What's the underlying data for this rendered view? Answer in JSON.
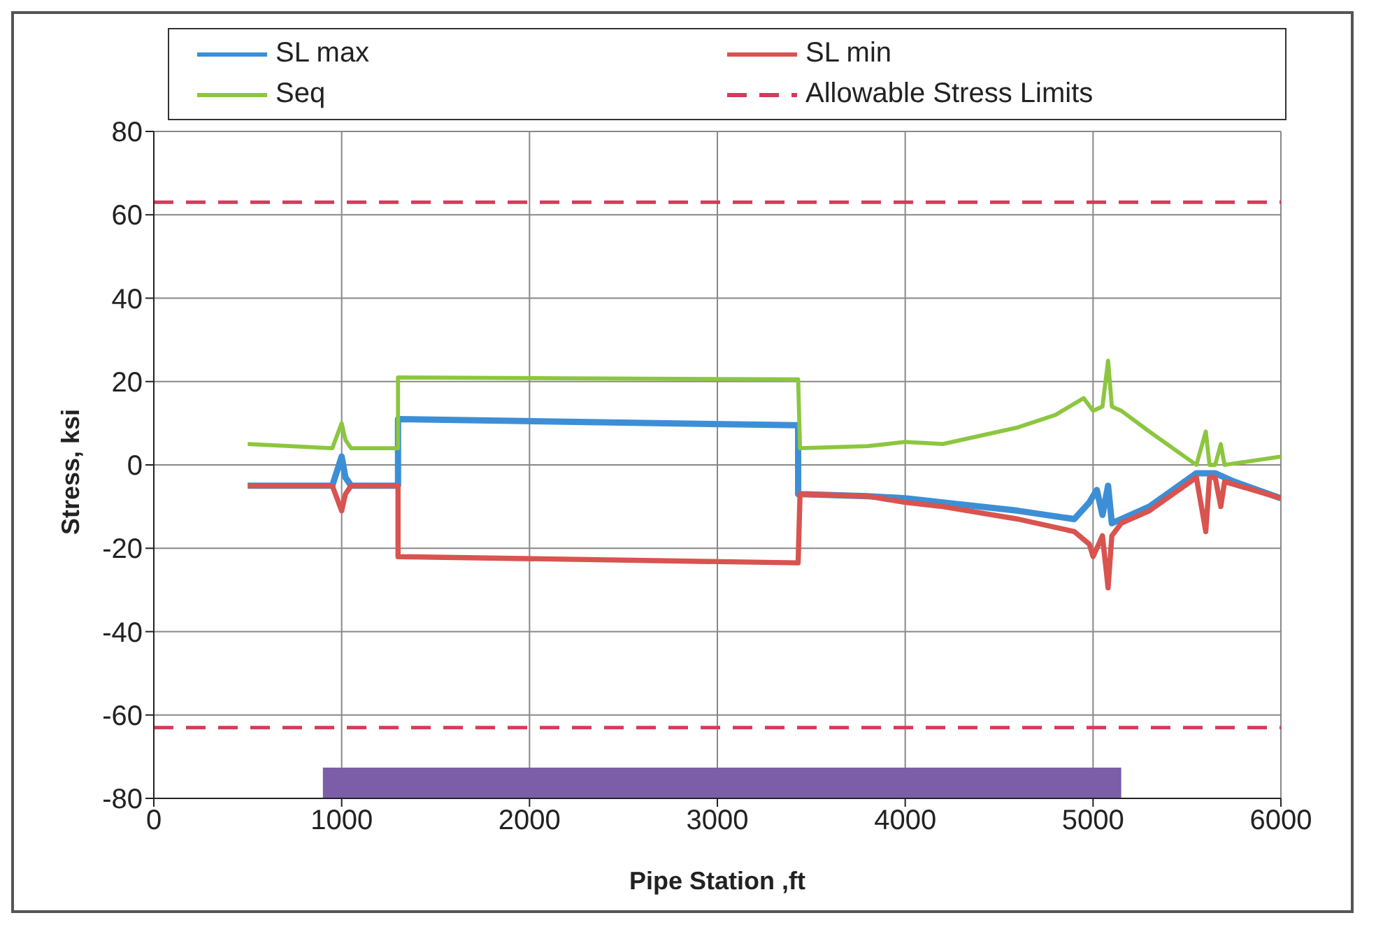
{
  "chart_data": {
    "type": "line",
    "xlabel": "Pipe Station ,ft",
    "ylabel": "Stress, ksi",
    "xlim": [
      0,
      6000
    ],
    "ylim": [
      -80,
      80
    ],
    "xticks": [
      0,
      1000,
      2000,
      3000,
      4000,
      5000,
      6000
    ],
    "yticks": [
      -80,
      -60,
      -40,
      -20,
      0,
      20,
      40,
      60,
      80
    ],
    "grid": true,
    "legend": "top",
    "series": [
      {
        "name": "SL max",
        "color": "#3c8fd6",
        "x": [
          500,
          950,
          1000,
          1020,
          1050,
          1300,
          1300,
          1310,
          3430,
          3430,
          3440,
          3800,
          4000,
          4200,
          4600,
          4900,
          4980,
          5020,
          5050,
          5080,
          5100,
          5150,
          5300,
          5550,
          5650,
          5750,
          6000
        ],
        "values": [
          -5,
          -5,
          2,
          -3,
          -5,
          -5,
          11,
          11,
          9.5,
          -7,
          -7,
          -7.5,
          -8,
          -9,
          -11,
          -13,
          -9,
          -6,
          -12,
          -5,
          -14,
          -13,
          -10,
          -2,
          -2,
          -4,
          -8
        ]
      },
      {
        "name": "SL min",
        "color": "#d9534f",
        "x": [
          500,
          950,
          1000,
          1020,
          1050,
          1300,
          1300,
          1310,
          3430,
          3430,
          3440,
          3800,
          4000,
          4200,
          4600,
          4900,
          4980,
          5000,
          5050,
          5080,
          5100,
          5150,
          5300,
          5550,
          5600,
          5620,
          5650,
          5680,
          5700,
          6000
        ],
        "values": [
          -5,
          -5,
          -11,
          -7,
          -5,
          -5,
          -22,
          -22,
          -23.5,
          -23.5,
          -7,
          -7.5,
          -9,
          -10,
          -13,
          -16,
          -19,
          -22,
          -17,
          -29.5,
          -17,
          -14,
          -11,
          -3,
          -16,
          -3,
          -3,
          -10,
          -4,
          -8
        ]
      },
      {
        "name": "Seq",
        "color": "#8cc63f",
        "x": [
          500,
          950,
          1000,
          1020,
          1050,
          1300,
          1300,
          1310,
          3430,
          3430,
          3440,
          3800,
          4000,
          4200,
          4600,
          4800,
          4950,
          5000,
          5050,
          5080,
          5100,
          5150,
          5300,
          5550,
          5600,
          5620,
          5650,
          5680,
          5700,
          6000
        ],
        "values": [
          5,
          4,
          10,
          6,
          4,
          4,
          21,
          21,
          20.5,
          20.5,
          4,
          4.5,
          5.5,
          5,
          9,
          12,
          16,
          13,
          14,
          25,
          14,
          13,
          8,
          0,
          8,
          0,
          0,
          5,
          0,
          2
        ]
      },
      {
        "name": "Allowable Stress Limits",
        "color": "#d63a5a",
        "line_style": "dashed",
        "x": [
          0,
          6000
        ],
        "values": [
          63,
          63
        ]
      },
      {
        "color": "#d63a5a",
        "line_style": "dashed",
        "x": [
          0,
          6000
        ],
        "values": [
          -63,
          -63
        ]
      }
    ],
    "bands": [
      {
        "axis": "x",
        "from": 900,
        "to": 5150,
        "color": "#7b5ea7"
      }
    ]
  }
}
